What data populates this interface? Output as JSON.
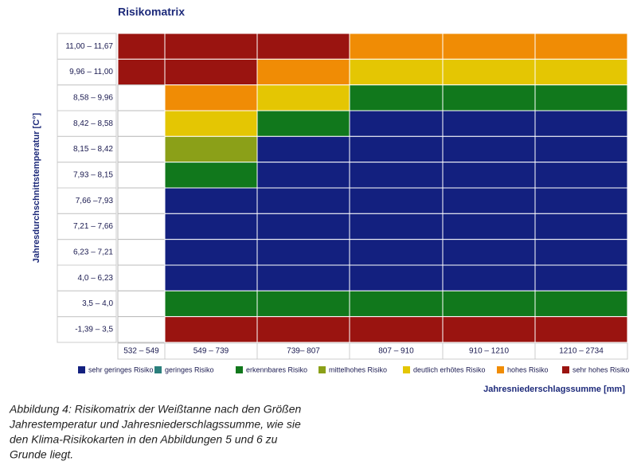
{
  "chart_data": {
    "type": "heatmap",
    "title": "Risikomatrix",
    "x_label": "Jahresniederschlagssumme [mm]",
    "y_label": "Jahresdurchschnittstemperatur [C°]",
    "x_categories": [
      "532 – 549",
      "549 – 739",
      "739– 807",
      "807 – 910",
      "910 – 1210",
      "1210 – 2734"
    ],
    "y_categories": [
      "11,00 – 11,67",
      "9,96 – 11,00",
      "8,58 – 9,96",
      "8,42 – 8,58",
      "8,15 – 8,42",
      "7,93 – 8,15",
      "7,66 –7,93",
      "7,21 – 7,66",
      "6,23 – 7,21",
      "4,0 – 6,23",
      "3,5 – 4,0",
      "-1,39 – 3,5"
    ],
    "z": [
      [
        7,
        7,
        7,
        6,
        6,
        6
      ],
      [
        7,
        7,
        6,
        5,
        5,
        5
      ],
      [
        null,
        6,
        5,
        3,
        3,
        3
      ],
      [
        null,
        5,
        3,
        1,
        1,
        1
      ],
      [
        null,
        4,
        1,
        1,
        1,
        1
      ],
      [
        null,
        3,
        1,
        1,
        1,
        1
      ],
      [
        null,
        1,
        1,
        1,
        1,
        1
      ],
      [
        null,
        1,
        1,
        1,
        1,
        1
      ],
      [
        null,
        1,
        1,
        1,
        1,
        1
      ],
      [
        null,
        1,
        1,
        1,
        1,
        1
      ],
      [
        null,
        3,
        3,
        3,
        3,
        3
      ],
      [
        null,
        7,
        7,
        7,
        7,
        7
      ]
    ],
    "legend": [
      {
        "value": 1,
        "name": "sehr geringes Risiko",
        "color": "#13207f"
      },
      {
        "value": 2,
        "name": "geringes Risiko",
        "color": "#2b7f7c"
      },
      {
        "value": 3,
        "name": "erkennbares Risiko",
        "color": "#11781c"
      },
      {
        "value": 4,
        "name": "mittelhohes Risiko",
        "color": "#8ba018"
      },
      {
        "value": 5,
        "name": "deutlich erhötes Risiko",
        "color": "#e4c603"
      },
      {
        "value": 6,
        "name": "hohes Risiko",
        "color": "#f08c05"
      },
      {
        "value": 7,
        "name": "sehr hohes Risiko",
        "color": "#9a1410"
      }
    ],
    "caption": [
      "Abbildung 4: Risikomatrix der Weißtanne nach den Größen",
      "Jahrestemperatur und Jahresniederschlagssumme, wie sie",
      "den Klima-Risikokarten in den Abbildungen 5 und 6 zu",
      "Grunde liegt."
    ]
  }
}
